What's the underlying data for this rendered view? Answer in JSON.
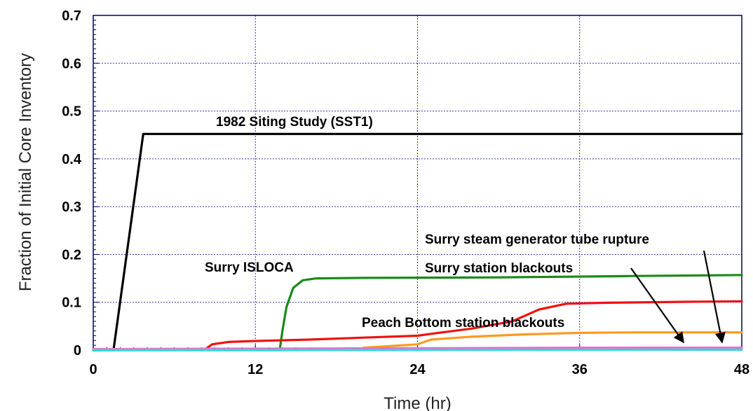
{
  "chart_data": {
    "type": "line",
    "title": "",
    "xlabel": "Time (hr)",
    "ylabel": "Fraction of Initial Core Inventory",
    "xlim": [
      0,
      48
    ],
    "ylim": [
      0,
      0.7
    ],
    "xticks": [
      0,
      12,
      24,
      36,
      48
    ],
    "yticks": [
      0,
      0.1,
      0.2,
      0.3,
      0.4,
      0.5,
      0.6,
      0.7
    ],
    "xtick_labels": [
      "0",
      "12",
      "24",
      "36",
      "48"
    ],
    "ytick_labels": [
      "0",
      "0.1",
      "0.2",
      "0.3",
      "0.4",
      "0.5",
      "0.6",
      "0.7"
    ],
    "grid": true,
    "series": [
      {
        "color": "#000000",
        "points": [
          [
            0,
            0
          ],
          [
            1.5,
            0
          ],
          [
            3.7,
            0.452
          ],
          [
            48,
            0.452
          ]
        ]
      },
      {
        "color": "#1a8a1a",
        "points": [
          [
            0,
            0
          ],
          [
            13.8,
            0
          ],
          [
            14.0,
            0.04
          ],
          [
            14.3,
            0.09
          ],
          [
            14.8,
            0.13
          ],
          [
            15.5,
            0.146
          ],
          [
            16.5,
            0.15
          ],
          [
            20,
            0.151
          ],
          [
            30,
            0.152
          ],
          [
            40,
            0.155
          ],
          [
            48,
            0.157
          ]
        ]
      },
      {
        "color": "#ee1111",
        "points": [
          [
            0,
            0
          ],
          [
            8.3,
            0.002
          ],
          [
            8.8,
            0.012
          ],
          [
            10,
            0.017
          ],
          [
            12,
            0.019
          ],
          [
            16,
            0.022
          ],
          [
            20,
            0.026
          ],
          [
            24,
            0.03
          ],
          [
            25,
            0.034
          ],
          [
            28,
            0.045
          ],
          [
            31,
            0.06
          ],
          [
            33,
            0.085
          ],
          [
            35,
            0.097
          ],
          [
            38,
            0.099
          ],
          [
            44,
            0.101
          ],
          [
            48,
            0.102
          ]
        ]
      },
      {
        "color": "#ff9922",
        "points": [
          [
            20,
            0.005
          ],
          [
            24,
            0.012
          ],
          [
            25,
            0.022
          ],
          [
            28,
            0.028
          ],
          [
            32,
            0.033
          ],
          [
            36,
            0.036
          ],
          [
            40,
            0.037
          ],
          [
            48,
            0.037
          ]
        ]
      },
      {
        "color": "#ff66cc",
        "points": [
          [
            0,
            0.002
          ],
          [
            12,
            0.003
          ],
          [
            24,
            0.004
          ],
          [
            36,
            0.005
          ],
          [
            48,
            0.005
          ]
        ]
      },
      {
        "color": "#22dddd",
        "points": [
          [
            0,
            0
          ],
          [
            24,
            0.0005
          ],
          [
            48,
            0.001
          ]
        ]
      }
    ],
    "annotations": [
      {
        "text": "1982 Siting Study (SST1)"
      },
      {
        "text": "Surry ISLOCA"
      },
      {
        "text": "Surry steam generator tube rupture"
      },
      {
        "text": "Surry station blackouts"
      },
      {
        "text": "Peach Bottom station blackouts"
      }
    ]
  }
}
